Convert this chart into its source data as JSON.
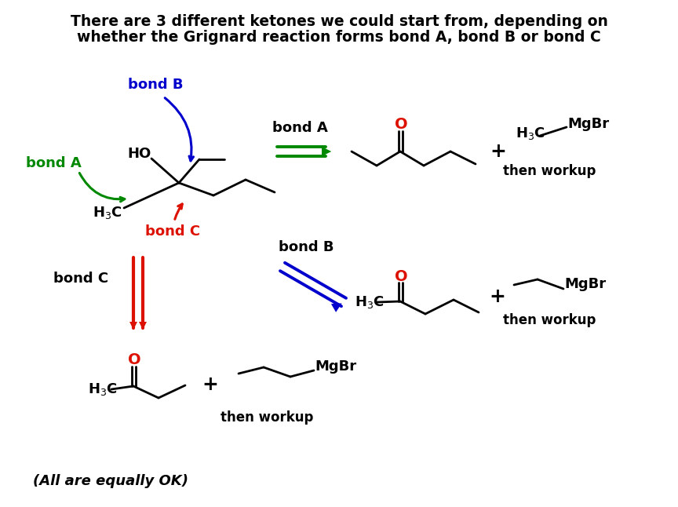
{
  "title_line1": "There are 3 different ketones we could start from, depending on",
  "title_line2": "whether the Grignard reaction forms bond A, bond B or bond C",
  "footer": "(All are equally OK)",
  "bg": "#ffffff",
  "black": "#000000",
  "green": "#008800",
  "blue": "#0000cc",
  "red": "#dd1100"
}
